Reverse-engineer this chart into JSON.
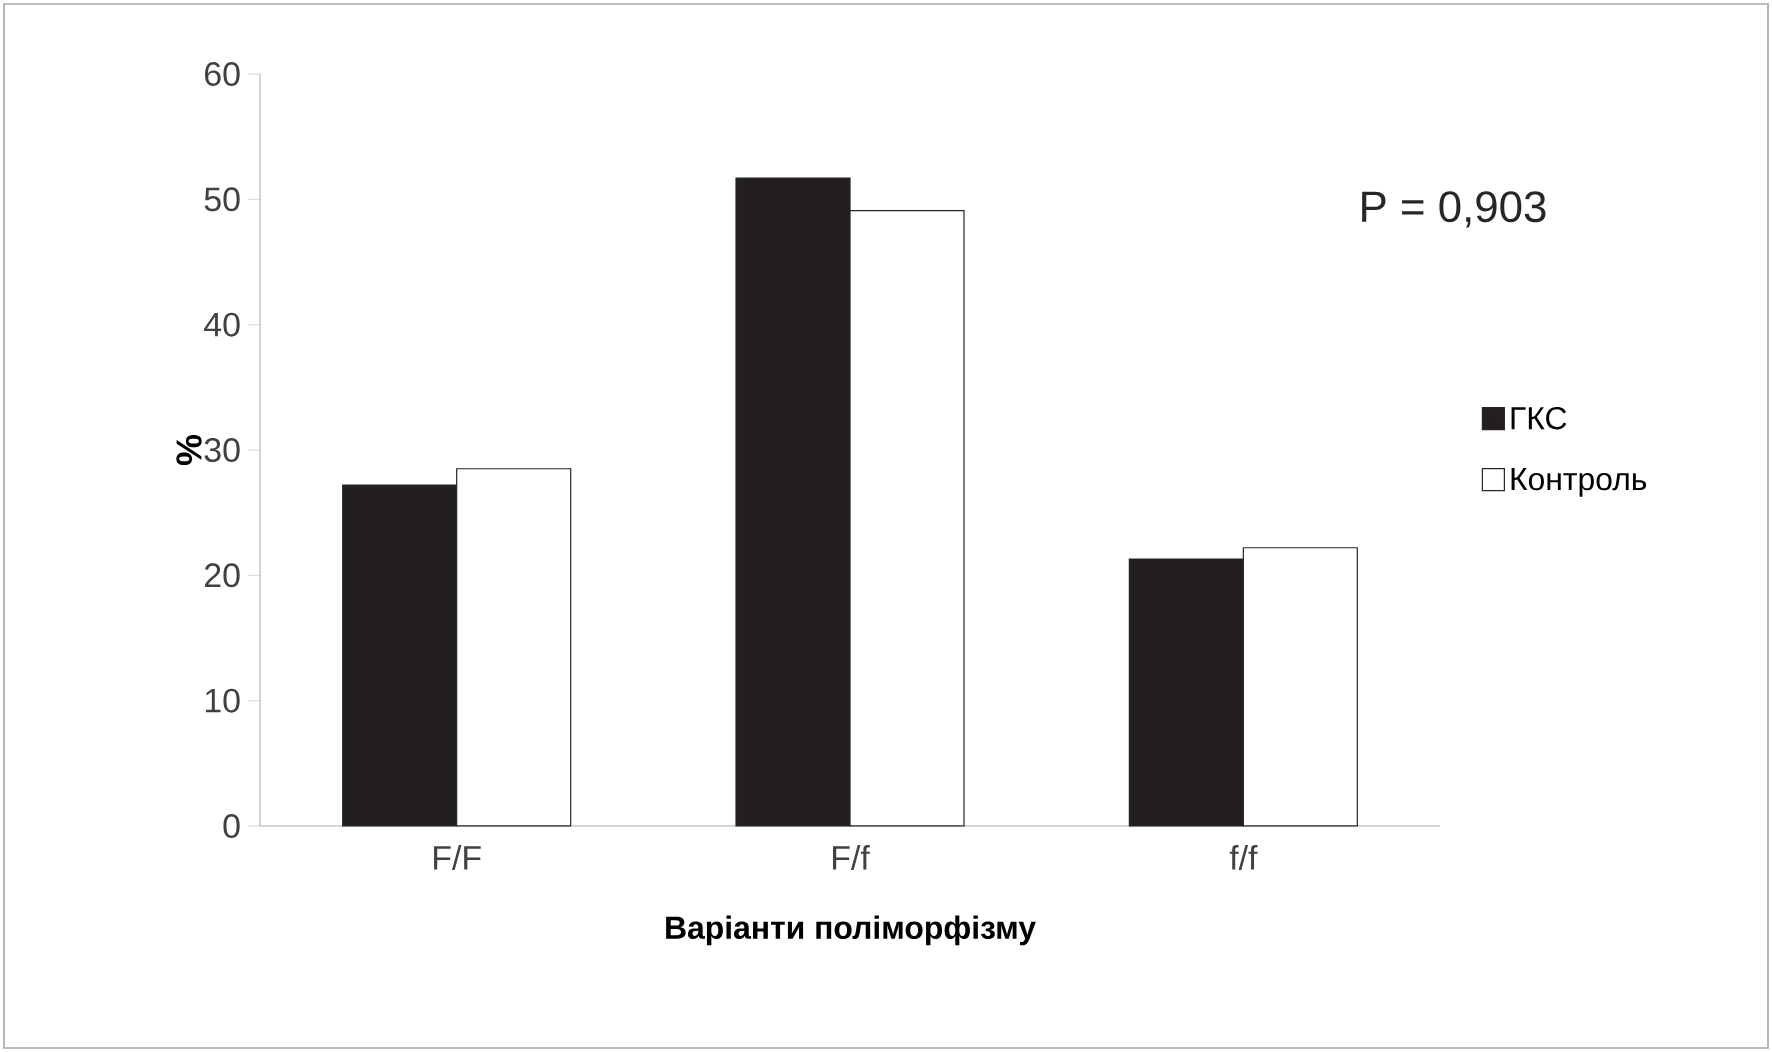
{
  "chart_data": {
    "type": "bar",
    "xlabel": "Варіанти поліморфізму",
    "ylabel": "%",
    "categories": [
      "F/F",
      "F/f",
      "f/f"
    ],
    "series": [
      {
        "name": "ГКС",
        "color": "#231f20",
        "values": [
          27.2,
          51.7,
          21.3
        ]
      },
      {
        "name": "Контроль",
        "color": "#ffffff",
        "values": [
          28.5,
          49.1,
          22.2
        ]
      }
    ],
    "ylim": [
      0,
      60
    ],
    "yticks": [
      0,
      10,
      20,
      30,
      40,
      50,
      60
    ],
    "legend": "right",
    "grid": false,
    "annotations": [
      "P = 0,903"
    ]
  }
}
